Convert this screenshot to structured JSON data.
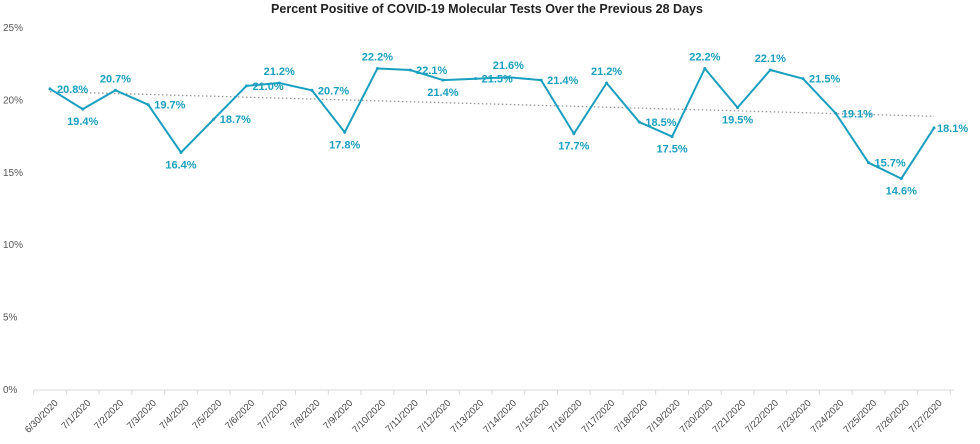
{
  "chart_data": {
    "type": "line",
    "title": "Percent Positive of COVID-19 Molecular Tests Over the Previous 28 Days",
    "xlabel": "",
    "ylabel": "",
    "ylim": [
      0,
      25
    ],
    "yticks": [
      0,
      5,
      10,
      15,
      20,
      25
    ],
    "ytick_labels": [
      "0%",
      "5%",
      "10%",
      "15%",
      "20%",
      "25%"
    ],
    "grid": false,
    "legend": "none",
    "categories": [
      "6/30/2020",
      "7/1/2020",
      "7/2/2020",
      "7/3/2020",
      "7/4/2020",
      "7/5/2020",
      "7/6/2020",
      "7/7/2020",
      "7/8/2020",
      "7/9/2020",
      "7/10/2020",
      "7/11/2020",
      "7/12/2020",
      "7/13/2020",
      "7/14/2020",
      "7/15/2020",
      "7/16/2020",
      "7/17/2020",
      "7/18/2020",
      "7/19/2020",
      "7/20/2020",
      "7/21/2020",
      "7/22/2020",
      "7/23/2020",
      "7/24/2020",
      "7/25/2020",
      "7/26/2020",
      "7/27/2020"
    ],
    "series": [
      {
        "name": "Percent Positive",
        "color": "#1a9fbf",
        "values": [
          20.8,
          19.4,
          20.7,
          19.7,
          16.4,
          18.7,
          21.0,
          21.2,
          20.7,
          17.8,
          22.2,
          22.1,
          21.4,
          21.5,
          21.6,
          21.4,
          17.7,
          21.2,
          18.5,
          17.5,
          22.2,
          19.5,
          22.1,
          21.5,
          19.1,
          15.7,
          14.6,
          18.1
        ],
        "labels": [
          "20.8%",
          "19.4%",
          "20.7%",
          "19.7%",
          "16.4%",
          "18.7%",
          "21.0%",
          "21.2%",
          "20.7%",
          "17.8%",
          "22.2%",
          "22.1%",
          "21.4%",
          "21.5%",
          "21.6%",
          "21.4%",
          "17.7%",
          "21.2%",
          "18.5%",
          "17.5%",
          "22.2%",
          "19.5%",
          "22.1%",
          "21.5%",
          "19.1%",
          "15.7%",
          "14.6%",
          "18.1%"
        ]
      }
    ],
    "trendline": {
      "type": "linear",
      "color": "#999999",
      "style": "dotted",
      "start": 20.6,
      "end": 18.9
    }
  }
}
